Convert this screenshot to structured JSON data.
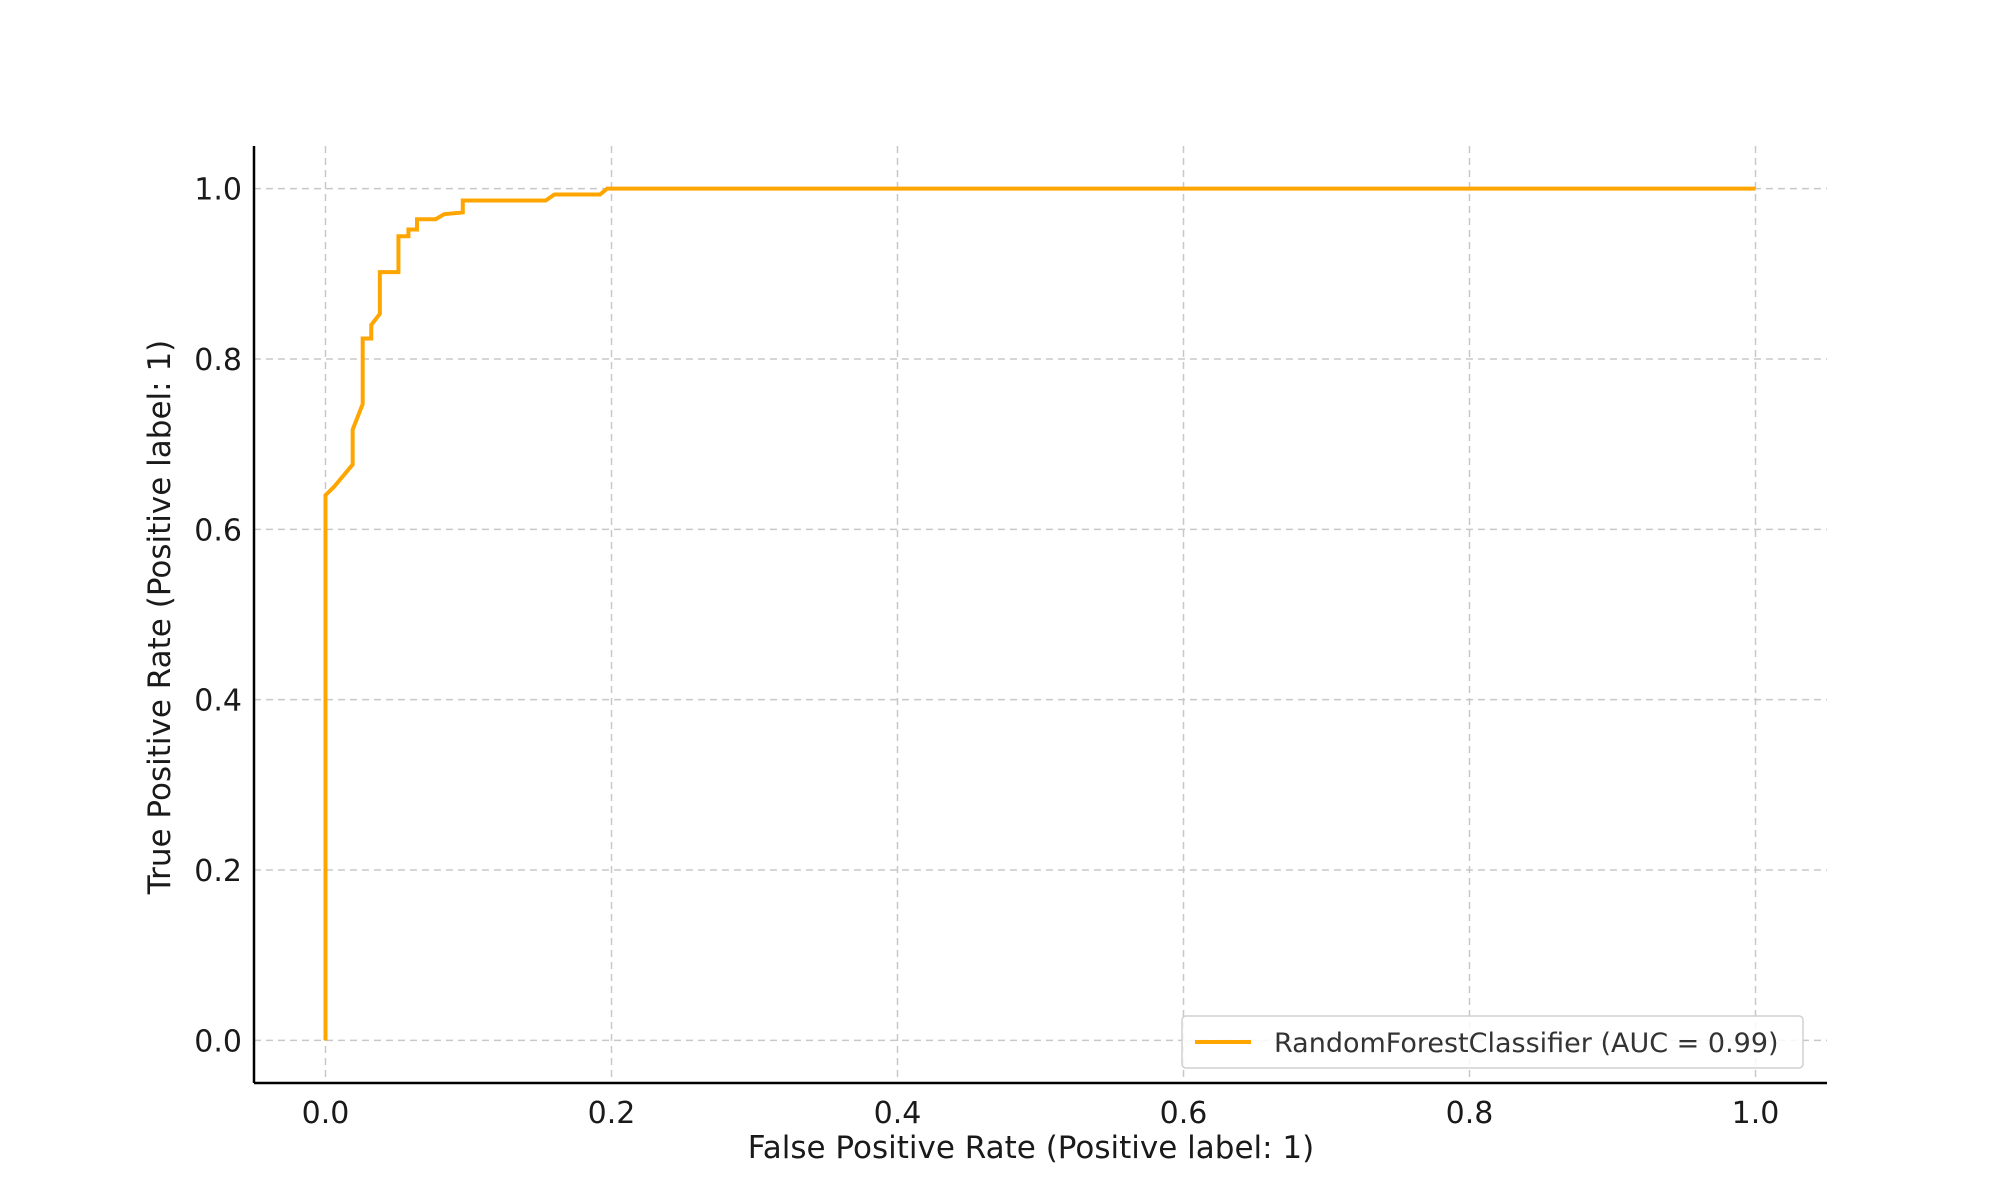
{
  "colors": {
    "series": "#FFA500",
    "grid": "#c8c8c8",
    "axis": "#000000",
    "legend_border": "#d0d0d0"
  },
  "chart_data": {
    "type": "line",
    "title": "",
    "xlabel": "False Positive Rate (Positive label: 1)",
    "ylabel": "True Positive Rate (Positive label: 1)",
    "xlim": [
      -0.05,
      1.05
    ],
    "ylim": [
      -0.05,
      1.05
    ],
    "grid": true,
    "grid_style": "dashed",
    "legend_position": "lower-right",
    "x_ticks": [
      0.0,
      0.2,
      0.4,
      0.6,
      0.8,
      1.0
    ],
    "y_ticks": [
      0.0,
      0.2,
      0.4,
      0.6,
      0.8,
      1.0
    ],
    "x_tick_labels": [
      "0.0",
      "0.2",
      "0.4",
      "0.6",
      "0.8",
      "1.0"
    ],
    "y_tick_labels": [
      "0.0",
      "0.2",
      "0.4",
      "0.6",
      "0.8",
      "1.0"
    ],
    "series": [
      {
        "name": "RandomForestClassifier (AUC = 0.99)",
        "x": [
          0.0,
          0.0,
          0.003,
          0.006,
          0.019,
          0.019,
          0.026,
          0.026,
          0.032,
          0.032,
          0.038,
          0.038,
          0.051,
          0.051,
          0.058,
          0.058,
          0.064,
          0.064,
          0.077,
          0.083,
          0.096,
          0.096,
          0.154,
          0.16,
          0.192,
          0.197,
          1.0
        ],
        "y": [
          0.0,
          0.64,
          0.645,
          0.65,
          0.676,
          0.717,
          0.747,
          0.824,
          0.824,
          0.84,
          0.853,
          0.902,
          0.902,
          0.944,
          0.944,
          0.952,
          0.952,
          0.964,
          0.964,
          0.97,
          0.972,
          0.986,
          0.986,
          0.993,
          0.993,
          1.0,
          1.0
        ]
      }
    ]
  }
}
